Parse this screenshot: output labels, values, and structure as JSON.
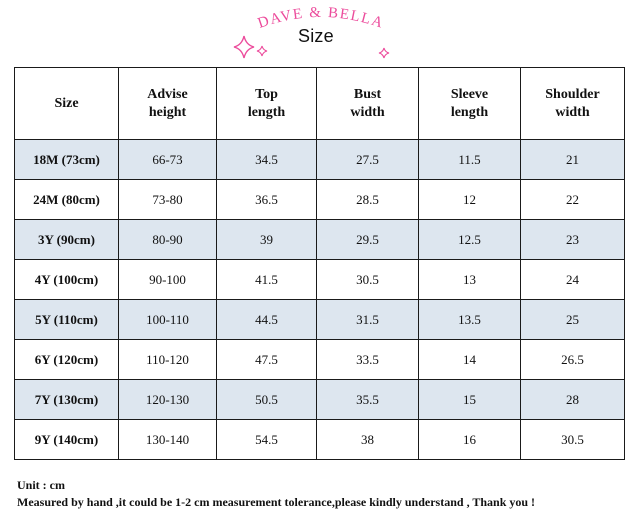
{
  "header": {
    "brand": "DAVE & BELLA",
    "title": "Size"
  },
  "table": {
    "columns": [
      [
        "Size"
      ],
      [
        "Advise",
        "height"
      ],
      [
        "Top",
        "length"
      ],
      [
        "Bust",
        "width"
      ],
      [
        "Sleeve",
        "length"
      ],
      [
        "Shoulder",
        "width"
      ]
    ],
    "rows": [
      [
        "18M (73cm)",
        "66-73",
        "34.5",
        "27.5",
        "11.5",
        "21"
      ],
      [
        "24M (80cm)",
        "73-80",
        "36.5",
        "28.5",
        "12",
        "22"
      ],
      [
        "3Y (90cm)",
        "80-90",
        "39",
        "29.5",
        "12.5",
        "23"
      ],
      [
        "4Y (100cm)",
        "90-100",
        "41.5",
        "30.5",
        "13",
        "24"
      ],
      [
        "5Y (110cm)",
        "100-110",
        "44.5",
        "31.5",
        "13.5",
        "25"
      ],
      [
        "6Y (120cm)",
        "110-120",
        "47.5",
        "33.5",
        "14",
        "26.5"
      ],
      [
        "7Y (130cm)",
        "120-130",
        "50.5",
        "35.5",
        "15",
        "28"
      ],
      [
        "9Y (140cm)",
        "130-140",
        "54.5",
        "38",
        "16",
        "30.5"
      ]
    ]
  },
  "notes": {
    "unit": "Unit : cm",
    "tolerance": "Measured by hand ,it could be 1-2 cm measurement tolerance,please kindly understand , Thank you !"
  },
  "colors": {
    "brand_pink": "#ec4c9c",
    "row_shade": "#dde6ef",
    "grid": "#1a1a1a"
  }
}
